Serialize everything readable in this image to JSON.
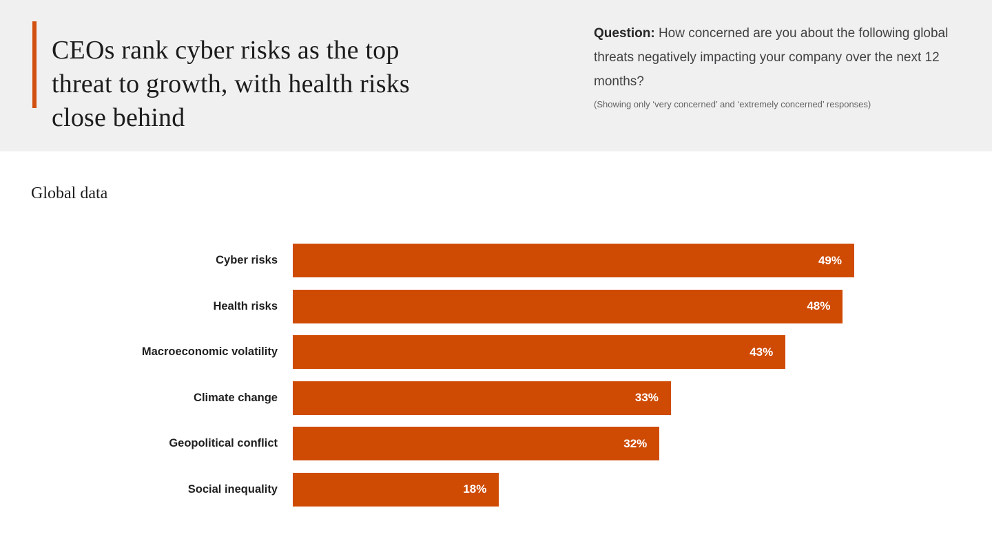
{
  "colors": {
    "header_background": "#f0f0f0",
    "page_background": "#ffffff",
    "accent_orange": "#d1500f",
    "bar_orange": "#cf4b04",
    "title_text": "#1c1c1c",
    "body_text": "#414143",
    "bar_value_text": "#ffffff"
  },
  "header": {
    "title": "CEOs rank cyber risks as the top threat to growth, with health risks close behind",
    "title_lines": [
      "CEOs rank cyber risks as the top",
      "threat to growth, with health risks",
      "close behind"
    ],
    "question_label": "Question:",
    "question_text": " How concerned are you about the following global threats negatively impacting your company over the next 12 months?",
    "question_note": "(Showing only ‘very concerned’ and ‘extremely concerned’ responses)"
  },
  "section": {
    "subtitle": "Global data"
  },
  "chart_data": {
    "type": "bar",
    "orientation": "horizontal",
    "title": "CEOs rank cyber risks as the top threat to growth, with health risks close behind",
    "subtitle": "Global data",
    "question": "How concerned are you about the following global threats negatively impacting your company over the next 12 months?",
    "note": "(Showing only ‘very concerned’ and ‘extremely concerned’ responses)",
    "categories": [
      "Cyber risks",
      "Health risks",
      "Macroeconomic volatility",
      "Climate change",
      "Geopolitical conflict",
      "Social inequality"
    ],
    "values": [
      49,
      48,
      43,
      33,
      32,
      18
    ],
    "value_suffix": "%",
    "xlim": [
      0,
      49
    ],
    "xmax": 49,
    "grid": false,
    "legend": false,
    "axis_ticks_visible": false,
    "bar_color": "#cf4b04",
    "value_labels": "inside-end, white bold"
  }
}
